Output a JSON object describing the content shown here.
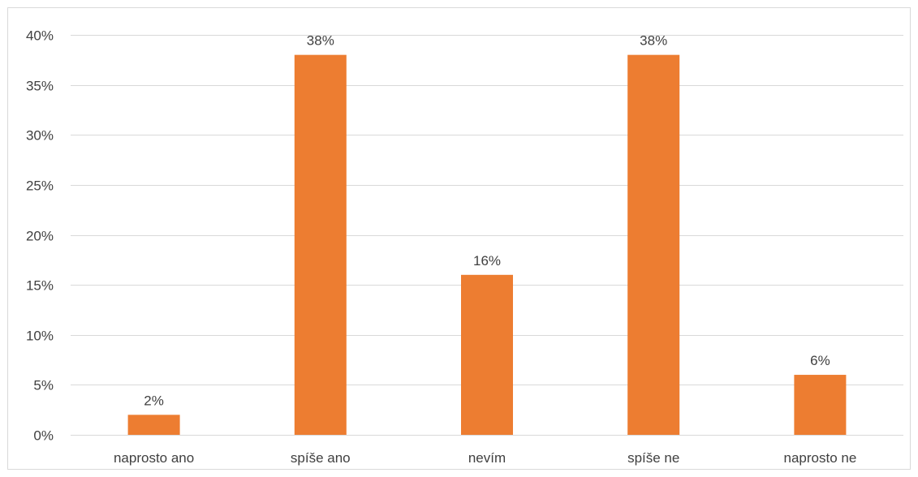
{
  "chart_data": {
    "type": "bar",
    "categories": [
      "naprosto ano",
      "spíše ano",
      "nevím",
      "spíše ne",
      "naprosto ne"
    ],
    "values": [
      2,
      38,
      16,
      38,
      6
    ],
    "data_labels": [
      "2%",
      "38%",
      "16%",
      "38%",
      "6%"
    ],
    "ylim": [
      0,
      40
    ],
    "y_ticks": [
      0,
      5,
      10,
      15,
      20,
      25,
      30,
      35,
      40
    ],
    "y_tick_labels": [
      "0%",
      "5%",
      "10%",
      "15%",
      "20%",
      "25%",
      "30%",
      "35%",
      "40%"
    ],
    "bar_color": "#ED7D31",
    "gridline_color": "#D9D9D9",
    "grid": true,
    "legend": "none"
  }
}
